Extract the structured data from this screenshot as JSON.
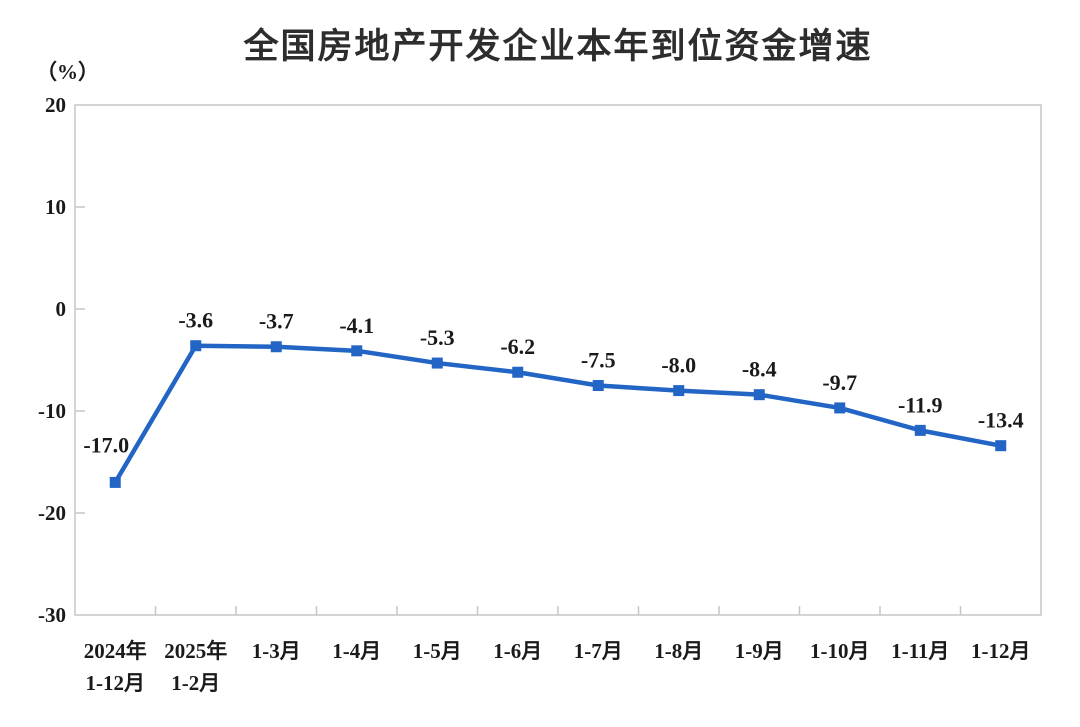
{
  "chart_data": {
    "type": "line",
    "title": "全国房地产开发企业本年到位资金增速",
    "unit_label": "（%）",
    "categories": [
      "2024年\n1-12月",
      "2025年\n1-2月",
      "1-3月",
      "1-4月",
      "1-5月",
      "1-6月",
      "1-7月",
      "1-8月",
      "1-9月",
      "1-10月",
      "1-11月",
      "1-12月"
    ],
    "values": [
      -17.0,
      -3.6,
      -3.7,
      -4.1,
      -5.3,
      -6.2,
      -7.5,
      -8.0,
      -8.4,
      -9.7,
      -11.9,
      -13.4
    ],
    "data_labels": [
      "-17.0",
      "-3.6",
      "-3.7",
      "-4.1",
      "-5.3",
      "-6.2",
      "-7.5",
      "-8.0",
      "-8.4",
      "-9.7",
      "-11.9",
      "-13.4"
    ],
    "ylim": [
      -30,
      20
    ],
    "yticks": [
      20,
      10,
      0,
      -10,
      -20,
      -30
    ],
    "xlabel": "",
    "ylabel": "（%）",
    "grid": false,
    "legend": "none",
    "marker": "square",
    "colors": {
      "line": "#2265C5",
      "marker": "#2265C5",
      "axis": "#c6c6c6",
      "tick_text": "#1a1a1a",
      "data_label_text": "#1a1a1a",
      "title_text": "#2d2d2d",
      "background": "#ffffff"
    }
  }
}
